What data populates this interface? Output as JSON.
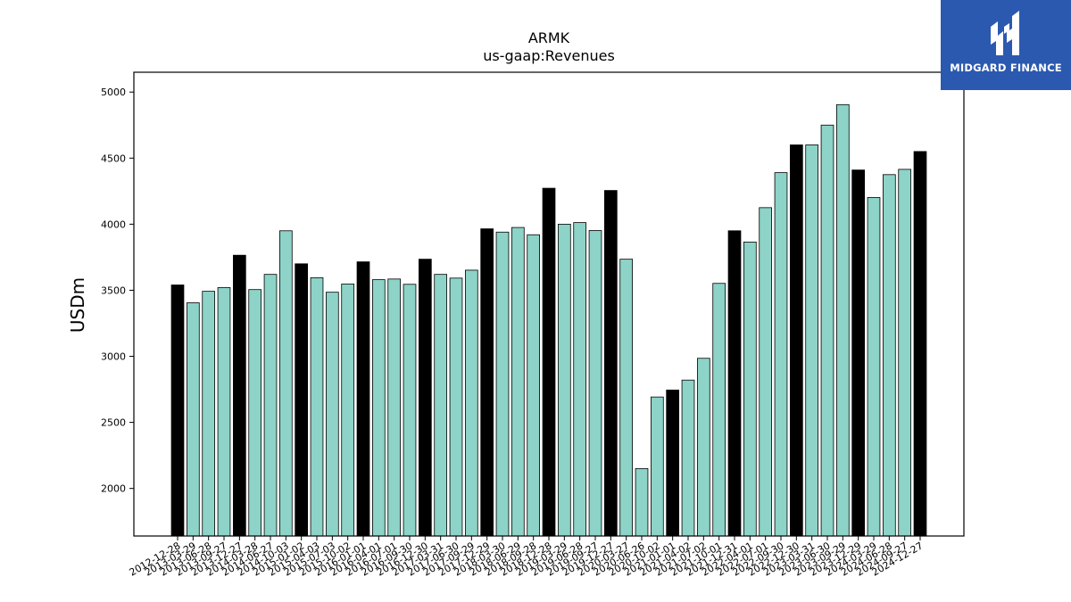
{
  "chart_data": {
    "type": "bar",
    "title": "ARMK",
    "subtitle": "us-gaap:Revenues",
    "ylabel": "USDm",
    "xlabel": "",
    "ylim": [
      1640,
      5150
    ],
    "yticks": [
      2000,
      2500,
      3000,
      3500,
      4000,
      4500,
      5000
    ],
    "grid": false,
    "colors": {
      "annual": "#000000",
      "quarterly": "#8dd3c7",
      "edge": "#000000"
    },
    "categories": [
      "2012-12-28",
      "2013-03-29",
      "2013-06-28",
      "2013-09-27",
      "2013-12-27",
      "2014-03-28",
      "2014-06-27",
      "2014-10-03",
      "2015-01-02",
      "2015-04-03",
      "2015-07-03",
      "2015-10-02",
      "2016-01-01",
      "2016-04-01",
      "2016-07-01",
      "2016-09-30",
      "2016-12-30",
      "2017-03-31",
      "2017-06-30",
      "2017-09-29",
      "2017-12-29",
      "2018-03-30",
      "2018-06-29",
      "2018-09-28",
      "2018-12-28",
      "2019-03-29",
      "2019-06-28",
      "2019-09-27",
      "2019-12-27",
      "2020-03-27",
      "2020-06-26",
      "2020-10-02",
      "2021-01-01",
      "2021-04-02",
      "2021-07-02",
      "2021-10-01",
      "2021-12-31",
      "2022-04-01",
      "2022-07-01",
      "2022-09-30",
      "2022-12-30",
      "2023-03-31",
      "2023-06-30",
      "2023-09-29",
      "2023-12-29",
      "2024-03-29",
      "2024-06-28",
      "2024-09-27",
      "2024-12-27"
    ],
    "values": [
      3540,
      3405,
      3492,
      3520,
      3765,
      3505,
      3620,
      3950,
      3700,
      3595,
      3485,
      3547,
      3715,
      3580,
      3585,
      3545,
      3735,
      3620,
      3592,
      3652,
      3965,
      3940,
      3975,
      3920,
      4272,
      4000,
      4012,
      3952,
      4255,
      3735,
      2150,
      2692,
      2745,
      2820,
      2985,
      3552,
      3950,
      3865,
      4125,
      4390,
      4600,
      4600,
      4750,
      4905,
      4410,
      4202,
      4375,
      4415,
      4550
    ],
    "annual": [
      true,
      false,
      false,
      false,
      true,
      false,
      false,
      false,
      true,
      false,
      false,
      false,
      true,
      false,
      false,
      false,
      true,
      false,
      false,
      false,
      true,
      false,
      false,
      false,
      true,
      false,
      false,
      false,
      true,
      false,
      false,
      false,
      true,
      false,
      false,
      false,
      true,
      false,
      false,
      false,
      true,
      false,
      false,
      false,
      true,
      false,
      false,
      false,
      true
    ]
  },
  "logo": {
    "text": "MIDGARD FINANCE",
    "icon": "midgard-logo-icon"
  }
}
